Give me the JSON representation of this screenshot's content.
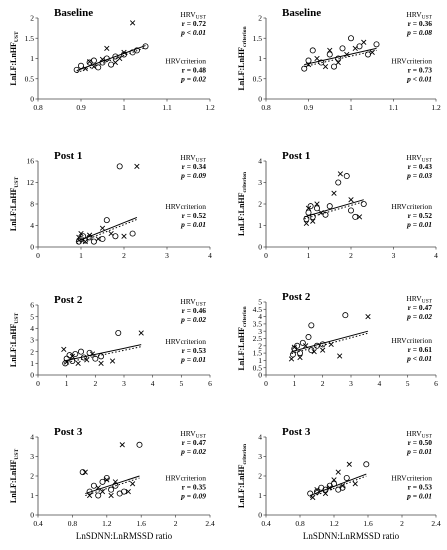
{
  "panels": [
    {
      "id": "baseline-left",
      "title": "Baseline",
      "ylabel": "LnLF:LnHF",
      "ylabel_sub": "UST",
      "xlabel": "LnSDNN:LnRMSSD ratio",
      "x_ticks": [
        "0.8",
        "0.9",
        "1",
        "1.1",
        "1.2"
      ],
      "x_range": [
        0.8,
        1.2
      ],
      "y_ticks": [
        "0",
        "0.5",
        "1",
        "1.5",
        "2"
      ],
      "y_range": [
        0,
        2
      ],
      "stats_top": {
        "label": "HRV",
        "sub": "UST",
        "r": "r = 0.72",
        "p": "p < 0.01"
      },
      "stats_bottom": {
        "label": "HRVcriterion",
        "r": "r = 0.48",
        "p": "p = 0.02"
      },
      "circles": [
        [
          0.89,
          0.72
        ],
        [
          0.9,
          0.82
        ],
        [
          0.92,
          0.9
        ],
        [
          0.93,
          0.95
        ],
        [
          0.95,
          0.9
        ],
        [
          0.96,
          1.0
        ],
        [
          0.98,
          1.05
        ],
        [
          1.0,
          1.1
        ],
        [
          1.02,
          1.15
        ],
        [
          1.03,
          1.2
        ],
        [
          1.05,
          1.3
        ],
        [
          0.97,
          0.85
        ],
        [
          0.94,
          0.78
        ]
      ],
      "crosses": [
        [
          0.91,
          0.75
        ],
        [
          0.92,
          0.92
        ],
        [
          0.93,
          0.8
        ],
        [
          0.95,
          0.98
        ],
        [
          0.96,
          1.25
        ],
        [
          0.99,
          1.0
        ],
        [
          1.0,
          1.15
        ],
        [
          1.02,
          1.88
        ],
        [
          0.98,
          0.9
        ]
      ],
      "trend": [
        [
          0.89,
          0.7
        ],
        [
          1.05,
          1.32
        ]
      ]
    },
    {
      "id": "baseline-right",
      "title": "Baseline",
      "ylabel": "LnLF:LnHF",
      "ylabel_sub": "criterion",
      "xlabel": "LnSDNN:LnRMSSD ratio",
      "x_ticks": [
        "0.8",
        "0.9",
        "1",
        "1.1",
        "1.2"
      ],
      "x_range": [
        0.8,
        1.2
      ],
      "y_ticks": [
        "0",
        "0.5",
        "1",
        "1.5",
        "2"
      ],
      "y_range": [
        0,
        2
      ],
      "stats_top": {
        "label": "HRV",
        "sub": "UST",
        "r": "r = 0.36",
        "p": "p = 0.08"
      },
      "stats_bottom": {
        "label": "HRVcriterion",
        "r": "r = 0.73",
        "p": "p < 0.01"
      },
      "circles": [
        [
          0.89,
          0.75
        ],
        [
          0.9,
          0.95
        ],
        [
          0.91,
          1.2
        ],
        [
          0.93,
          0.9
        ],
        [
          0.95,
          1.1
        ],
        [
          0.97,
          1.0
        ],
        [
          0.98,
          1.25
        ],
        [
          1.0,
          1.5
        ],
        [
          1.02,
          1.3
        ],
        [
          1.04,
          1.1
        ],
        [
          1.06,
          1.35
        ],
        [
          0.96,
          0.8
        ]
      ],
      "crosses": [
        [
          0.9,
          0.85
        ],
        [
          0.92,
          1.0
        ],
        [
          0.94,
          0.8
        ],
        [
          0.95,
          1.2
        ],
        [
          0.97,
          0.9
        ],
        [
          0.99,
          1.1
        ],
        [
          1.01,
          1.25
        ],
        [
          1.03,
          1.4
        ],
        [
          1.05,
          1.15
        ]
      ],
      "trend": [
        [
          0.89,
          0.85
        ],
        [
          1.06,
          1.25
        ]
      ]
    },
    {
      "id": "post1-left",
      "title": "Post 1",
      "ylabel": "LnLF:LnHF",
      "ylabel_sub": "UST",
      "xlabel": "LnSDNN:LnRMSSD ratio",
      "x_ticks": [
        "0",
        "1",
        "2",
        "3",
        "4"
      ],
      "x_range": [
        0,
        4
      ],
      "y_ticks": [
        "0",
        "4",
        "8",
        "12",
        "16"
      ],
      "y_range": [
        0,
        16
      ],
      "stats_top": {
        "label": "HRV",
        "sub": "UST",
        "r": "r = 0.34",
        "p": "p = 0.09"
      },
      "stats_bottom": {
        "label": "HRVcriterion",
        "r": "r = 0.52",
        "p": "p = 0.01"
      },
      "circles": [
        [
          0.95,
          1.0
        ],
        [
          1.0,
          1.5
        ],
        [
          1.05,
          2.0
        ],
        [
          1.1,
          1.2
        ],
        [
          1.2,
          1.8
        ],
        [
          1.3,
          1.0
        ],
        [
          1.5,
          1.5
        ],
        [
          1.6,
          5.0
        ],
        [
          1.8,
          2.0
        ],
        [
          1.9,
          15.0
        ],
        [
          2.2,
          2.5
        ]
      ],
      "crosses": [
        [
          0.95,
          1.8
        ],
        [
          1.0,
          2.5
        ],
        [
          1.1,
          1.0
        ],
        [
          1.2,
          2.2
        ],
        [
          1.4,
          1.5
        ],
        [
          1.5,
          3.5
        ],
        [
          1.7,
          2.5
        ],
        [
          2.0,
          2.0
        ],
        [
          2.3,
          15.0
        ]
      ],
      "trend": [
        [
          0.9,
          1.0
        ],
        [
          2.3,
          5.5
        ]
      ]
    },
    {
      "id": "post1-right",
      "title": "Post 1",
      "ylabel": "LnLF:LnHF",
      "ylabel_sub": "criterion",
      "xlabel": "LnSDNN:LnRMSSD ratio",
      "x_ticks": [
        "0",
        "1",
        "2",
        "3",
        "4"
      ],
      "x_range": [
        0,
        4
      ],
      "y_ticks": [
        "0",
        "1",
        "2",
        "3",
        "4"
      ],
      "y_range": [
        0,
        4
      ],
      "stats_top": {
        "label": "HRV",
        "sub": "UST",
        "r": "r = 0.43",
        "p": "p = 0.03"
      },
      "stats_bottom": {
        "label": "HRVcriterion",
        "r": "r = 0.52",
        "p": "p = 0.01"
      },
      "circles": [
        [
          0.95,
          1.3
        ],
        [
          1.0,
          1.6
        ],
        [
          1.05,
          1.9
        ],
        [
          1.1,
          1.4
        ],
        [
          1.2,
          1.8
        ],
        [
          1.4,
          1.5
        ],
        [
          1.5,
          1.9
        ],
        [
          1.7,
          3.0
        ],
        [
          1.9,
          3.3
        ],
        [
          2.0,
          1.7
        ],
        [
          2.1,
          1.4
        ],
        [
          2.3,
          2.0
        ]
      ],
      "crosses": [
        [
          0.95,
          1.1
        ],
        [
          1.0,
          1.8
        ],
        [
          1.1,
          1.2
        ],
        [
          1.2,
          2.0
        ],
        [
          1.3,
          1.6
        ],
        [
          1.6,
          2.5
        ],
        [
          1.75,
          3.4
        ],
        [
          2.0,
          2.2
        ],
        [
          2.2,
          1.4
        ]
      ],
      "trend": [
        [
          0.9,
          1.4
        ],
        [
          2.3,
          2.2
        ]
      ]
    },
    {
      "id": "post2-left",
      "title": "Post 2",
      "ylabel": "LnLF:LnHF",
      "ylabel_sub": "UST",
      "xlabel": "LnSDNN:LnRMSSD ratio",
      "x_ticks": [
        "0",
        "1",
        "2",
        "3",
        "4",
        "5",
        "6"
      ],
      "x_range": [
        0,
        6
      ],
      "y_ticks": [
        "0",
        "1",
        "2",
        "3",
        "4",
        "5",
        "6"
      ],
      "y_range": [
        0,
        6
      ],
      "stats_top": {
        "label": "HRV",
        "sub": "UST",
        "r": "r = 0.46",
        "p": "p = 0.02"
      },
      "stats_bottom": {
        "label": "HRVcriterion",
        "r": "r = 0.53",
        "p": "p = 0.01"
      },
      "circles": [
        [
          0.95,
          1.0
        ],
        [
          1.0,
          1.4
        ],
        [
          1.1,
          1.7
        ],
        [
          1.2,
          1.2
        ],
        [
          1.3,
          1.8
        ],
        [
          1.5,
          2.0
        ],
        [
          1.6,
          1.5
        ],
        [
          1.8,
          1.9
        ],
        [
          2.0,
          1.4
        ],
        [
          2.2,
          1.6
        ],
        [
          2.8,
          3.6
        ]
      ],
      "crosses": [
        [
          0.9,
          2.2
        ],
        [
          1.0,
          1.1
        ],
        [
          1.2,
          1.6
        ],
        [
          1.4,
          1.0
        ],
        [
          1.7,
          1.3
        ],
        [
          1.9,
          1.8
        ],
        [
          2.2,
          1.0
        ],
        [
          2.6,
          1.2
        ],
        [
          3.6,
          3.6
        ]
      ],
      "trend": [
        [
          0.9,
          1.2
        ],
        [
          3.6,
          2.6
        ]
      ]
    },
    {
      "id": "post2-right",
      "title": "Post 2",
      "ylabel": "LnLF:LnHF",
      "ylabel_sub": "criterion",
      "xlabel": "LnSDNN:LnRMSSD ratio",
      "x_ticks": [
        "0",
        "1",
        "2",
        "3",
        "4",
        "5",
        "6"
      ],
      "x_range": [
        0,
        6
      ],
      "y_ticks": [
        "0",
        "0.5",
        "1",
        "1.5",
        "2",
        "2.5",
        "3",
        "3.5",
        "4",
        "4.5",
        "5"
      ],
      "y_range": [
        0,
        5
      ],
      "stats_top": {
        "label": "HRV",
        "sub": "UST",
        "r": "r = 0.47",
        "p": "p = 0.02"
      },
      "stats_bottom": {
        "label": "HRVcriterion",
        "r": "r = 0.61",
        "p": "p < 0.01"
      },
      "circles": [
        [
          0.95,
          1.4
        ],
        [
          1.0,
          1.8
        ],
        [
          1.1,
          2.0
        ],
        [
          1.2,
          1.5
        ],
        [
          1.3,
          2.2
        ],
        [
          1.5,
          2.6
        ],
        [
          1.6,
          1.7
        ],
        [
          1.8,
          2.0
        ],
        [
          2.0,
          2.1
        ],
        [
          2.8,
          4.1
        ],
        [
          1.6,
          3.4
        ]
      ],
      "crosses": [
        [
          0.9,
          1.1
        ],
        [
          1.0,
          1.9
        ],
        [
          1.2,
          1.2
        ],
        [
          1.4,
          2.0
        ],
        [
          1.7,
          1.6
        ],
        [
          2.0,
          1.7
        ],
        [
          2.3,
          2.1
        ],
        [
          2.6,
          1.3
        ],
        [
          3.6,
          4.0
        ]
      ],
      "trend": [
        [
          0.9,
          1.6
        ],
        [
          3.6,
          3.0
        ]
      ]
    },
    {
      "id": "post3-left",
      "title": "Post 3",
      "ylabel": "LnLF:LnHF",
      "ylabel_sub": "UST",
      "xlabel": "LnSDNN:LnRMSSD ratio",
      "x_ticks": [
        "0.4",
        "0.8",
        "1.2",
        "1.6",
        "2",
        "2.4"
      ],
      "x_range": [
        0.4,
        2.4
      ],
      "y_ticks": [
        "0",
        "1",
        "2",
        "3",
        "4"
      ],
      "y_range": [
        0,
        4
      ],
      "stats_top": {
        "label": "HRV",
        "sub": "UST",
        "r": "r = 0.47",
        "p": "p = 0.02"
      },
      "stats_bottom": {
        "label": "HRVcriterion",
        "r": "r = 0.35",
        "p": "p = 0.09"
      },
      "circles": [
        [
          0.92,
          2.2
        ],
        [
          1.0,
          1.2
        ],
        [
          1.05,
          1.5
        ],
        [
          1.1,
          1.0
        ],
        [
          1.15,
          1.7
        ],
        [
          1.2,
          1.9
        ],
        [
          1.25,
          1.3
        ],
        [
          1.3,
          1.5
        ],
        [
          1.35,
          1.1
        ],
        [
          1.4,
          1.2
        ],
        [
          1.58,
          3.6
        ]
      ],
      "crosses": [
        [
          0.95,
          2.2
        ],
        [
          1.0,
          1.0
        ],
        [
          1.1,
          1.4
        ],
        [
          1.15,
          1.2
        ],
        [
          1.2,
          1.8
        ],
        [
          1.25,
          1.0
        ],
        [
          1.3,
          1.7
        ],
        [
          1.45,
          1.2
        ],
        [
          1.5,
          1.6
        ],
        [
          1.38,
          3.6
        ]
      ],
      "trend": [
        [
          0.95,
          1.1
        ],
        [
          1.58,
          2.0
        ]
      ]
    },
    {
      "id": "post3-right",
      "title": "Post 3",
      "ylabel": "LnLF:LnHF",
      "ylabel_sub": "criterion",
      "xlabel": "LnSDNN:LnRMSSD ratio",
      "x_ticks": [
        "0.4",
        "0.8",
        "1.2",
        "1.6",
        "2",
        "2.4"
      ],
      "x_range": [
        0.4,
        2.4
      ],
      "y_ticks": [
        "0",
        "1",
        "2",
        "3",
        "4"
      ],
      "y_range": [
        0,
        4
      ],
      "stats_top": {
        "label": "HRV",
        "sub": "UST",
        "r": "r = 0.50",
        "p": "p = 0.01"
      },
      "stats_bottom": {
        "label": "HRVcriterion",
        "r": "r = 0.53",
        "p": "p = 0.01"
      },
      "circles": [
        [
          0.92,
          1.1
        ],
        [
          1.0,
          1.2
        ],
        [
          1.05,
          1.4
        ],
        [
          1.1,
          1.3
        ],
        [
          1.15,
          1.5
        ],
        [
          1.2,
          1.6
        ],
        [
          1.25,
          1.3
        ],
        [
          1.3,
          1.4
        ],
        [
          1.35,
          1.9
        ],
        [
          1.58,
          2.6
        ]
      ],
      "crosses": [
        [
          0.95,
          0.9
        ],
        [
          1.0,
          1.3
        ],
        [
          1.1,
          1.1
        ],
        [
          1.15,
          1.4
        ],
        [
          1.2,
          1.8
        ],
        [
          1.25,
          2.2
        ],
        [
          1.3,
          1.5
        ],
        [
          1.38,
          2.6
        ],
        [
          1.45,
          1.6
        ]
      ],
      "trend": [
        [
          0.92,
          1.0
        ],
        [
          1.58,
          2.1
        ]
      ]
    }
  ],
  "chart_data": [
    {
      "type": "scatter",
      "title": "Baseline",
      "ylabel": "LnLF:LnHF UST",
      "xlabel": "LnSDNN:LnRMSSD ratio",
      "xlim": [
        0.8,
        1.2
      ],
      "ylim": [
        0,
        2
      ],
      "annotations": [
        "HRV UST r = 0.72, p < 0.01",
        "HRVcriterion r = 0.48, p = 0.02"
      ]
    },
    {
      "type": "scatter",
      "title": "Baseline",
      "ylabel": "LnLF:LnHF criterion",
      "xlabel": "LnSDNN:LnRMSSD ratio",
      "xlim": [
        0.8,
        1.2
      ],
      "ylim": [
        0,
        2
      ],
      "annotations": [
        "HRV UST r = 0.36, p = 0.08",
        "HRVcriterion r = 0.73, p < 0.01"
      ]
    },
    {
      "type": "scatter",
      "title": "Post 1",
      "ylabel": "LnLF:LnHF UST",
      "xlabel": "LnSDNN:LnRMSSD ratio",
      "xlim": [
        0,
        4
      ],
      "ylim": [
        0,
        16
      ],
      "annotations": [
        "HRV UST r = 0.34, p = 0.09",
        "HRVcriterion r = 0.52, p = 0.01"
      ]
    },
    {
      "type": "scatter",
      "title": "Post 1",
      "ylabel": "LnLF:LnHF criterion",
      "xlabel": "LnSDNN:LnRMSSD ratio",
      "xlim": [
        0,
        4
      ],
      "ylim": [
        0,
        4
      ],
      "annotations": [
        "HRV UST r = 0.43, p = 0.03",
        "HRVcriterion r = 0.52, p = 0.01"
      ]
    },
    {
      "type": "scatter",
      "title": "Post 2",
      "ylabel": "LnLF:LnHF UST",
      "xlabel": "LnSDNN:LnRMSSD ratio",
      "xlim": [
        0,
        6
      ],
      "ylim": [
        0,
        6
      ],
      "annotations": [
        "HRV UST r = 0.46, p = 0.02",
        "HRVcriterion r = 0.53, p = 0.01"
      ]
    },
    {
      "type": "scatter",
      "title": "Post 2",
      "ylabel": "LnLF:LnHF criterion",
      "xlabel": "LnSDNN:LnRMSSD ratio",
      "xlim": [
        0,
        6
      ],
      "ylim": [
        0,
        5
      ],
      "annotations": [
        "HRV UST r = 0.47, p = 0.02",
        "HRVcriterion r = 0.61, p < 0.01"
      ]
    },
    {
      "type": "scatter",
      "title": "Post 3",
      "ylabel": "LnLF:LnHF UST",
      "xlabel": "LnSDNN:LnRMSSD ratio",
      "xlim": [
        0.4,
        2.4
      ],
      "ylim": [
        0,
        4
      ],
      "annotations": [
        "HRV UST r = 0.47, p = 0.02",
        "HRVcriterion r = 0.35, p = 0.09"
      ]
    },
    {
      "type": "scatter",
      "title": "Post 3",
      "ylabel": "LnLF:LnHF criterion",
      "xlabel": "LnSDNN:LnRMSSD ratio",
      "xlim": [
        0.4,
        2.4
      ],
      "ylim": [
        0,
        4
      ],
      "annotations": [
        "HRV UST r = 0.50, p = 0.01",
        "HRVcriterion r = 0.53, p = 0.01"
      ]
    }
  ]
}
